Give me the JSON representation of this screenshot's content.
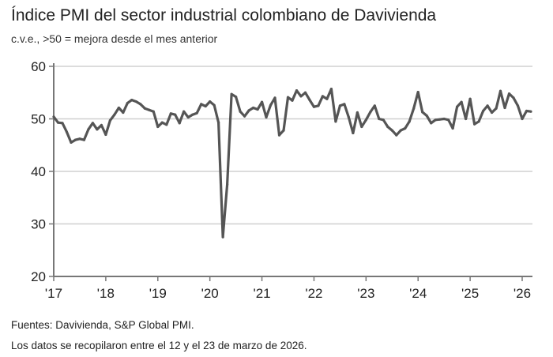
{
  "title": "Índice PMI del sector industrial colombiano de Davivienda",
  "subtitle": "c.v.e., >50 = mejora desde el mes anterior",
  "footer": {
    "source": "Fuentes: Davivienda, S&P Global PMI.",
    "note": "Los datos se recopilaron entre el 12  y el 23 de marzo de 2026."
  },
  "chart_data": {
    "type": "line",
    "title": "Índice PMI del sector industrial colombiano de Davivienda",
    "subtitle": "c.v.e., >50 = mejora desde el mes anterior",
    "x_start": "2017-01",
    "x_end": "2026-03",
    "frequency": "monthly",
    "xticks": [
      "'17",
      "'18",
      "'19",
      "'20",
      "'21",
      "'22",
      "'23",
      "'24",
      "'25",
      "'26"
    ],
    "yticks": [
      20,
      30,
      40,
      50,
      60
    ],
    "ylim": [
      20,
      60
    ],
    "grid": "horizontal",
    "line_color": "#555555",
    "grid_color": "#d0d0d0",
    "series": [
      {
        "values": [
          50.4,
          49.3,
          49.2,
          47.5,
          45.5,
          46.0,
          46.2,
          46.0,
          48.0,
          49.2,
          48.0,
          48.8,
          47.0,
          49.7,
          50.8,
          52.1,
          51.2,
          53.0,
          53.6,
          53.3,
          52.8,
          52.0,
          51.7,
          51.4,
          48.5,
          49.3,
          48.9,
          51.0,
          50.8,
          49.2,
          51.4,
          50.3,
          50.8,
          51.1,
          52.8,
          52.4,
          53.3,
          52.6,
          49.3,
          27.5,
          37.5,
          54.7,
          54.2,
          51.4,
          50.5,
          51.6,
          52.1,
          51.8,
          53.2,
          50.3,
          52.6,
          54.0,
          46.9,
          47.8,
          54.1,
          53.5,
          55.4,
          54.3,
          55.0,
          53.6,
          52.3,
          52.5,
          54.3,
          53.8,
          55.7,
          49.5,
          52.5,
          52.8,
          50.3,
          47.3,
          51.2,
          48.5,
          49.8,
          51.3,
          52.5,
          50.0,
          49.8,
          48.5,
          47.8,
          46.9,
          47.8,
          48.2,
          49.5,
          52.0,
          55.1,
          51.3,
          50.6,
          49.2,
          49.8,
          49.9,
          50.0,
          49.8,
          48.2,
          52.3,
          53.2,
          50.0,
          53.8,
          49.0,
          49.5,
          51.5,
          52.5,
          51.2,
          52.0,
          55.3,
          52.1,
          54.8,
          54.0,
          52.5,
          50.0,
          51.5,
          51.4
        ]
      }
    ]
  }
}
